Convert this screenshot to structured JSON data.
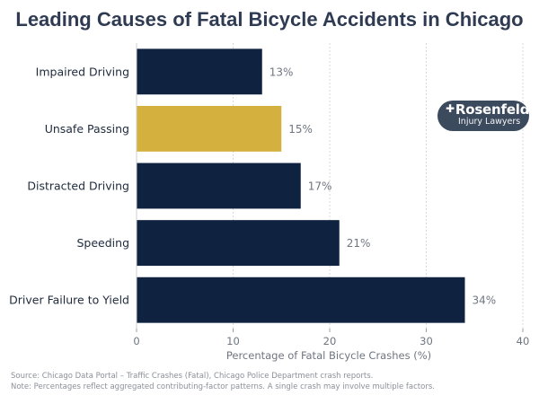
{
  "chart_data": {
    "type": "bar",
    "orientation": "horizontal",
    "title": "Leading Causes of Fatal Bicycle Accidents in Chicago",
    "categories": [
      "Impaired Driving",
      "Unsafe Passing",
      "Distracted Driving",
      "Speeding",
      "Driver Failure to Yield"
    ],
    "values": [
      13,
      15,
      17,
      21,
      34
    ],
    "value_labels": [
      "13%",
      "15%",
      "17%",
      "21%",
      "34%"
    ],
    "highlight_category": "Unsafe Passing",
    "xlabel": "Percentage of Fatal Bicycle Crashes (%)",
    "ylabel": "",
    "xlim": [
      0,
      40
    ],
    "xticks": [
      0,
      10,
      20,
      30,
      40
    ],
    "grid": "vertical-dotted",
    "colors": {
      "bar": "#0f2240",
      "highlight": "#d4b03e",
      "grid": "#d8d8d8",
      "axis_text": "#6f7580"
    }
  },
  "branding": {
    "logo_name": "Rosenfeld",
    "logo_tagline": "Injury Lawyers",
    "logo_color": "#3c4a5e"
  },
  "footer": {
    "source": "Source: Chicago Data Portal – Traffic Crashes (Fatal), Chicago Police Department crash reports.",
    "note": "Note: Percentages reflect aggregated contributing-factor patterns. A single crash may involve multiple factors."
  }
}
